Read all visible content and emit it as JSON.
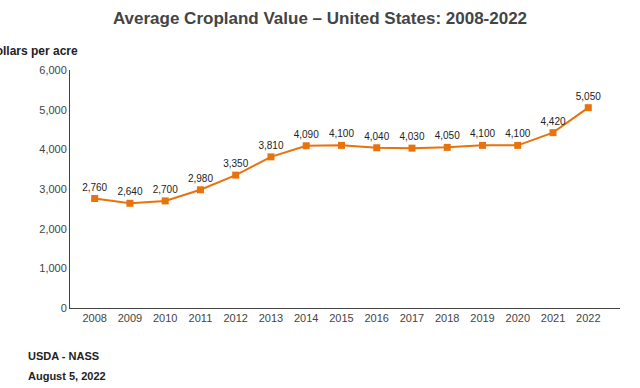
{
  "chart_data": {
    "type": "line",
    "title": "Average Cropland Value – United States: 2008-2022",
    "ylabel": "Dollars per acre",
    "x": [
      2008,
      2009,
      2010,
      2011,
      2012,
      2013,
      2014,
      2015,
      2016,
      2017,
      2018,
      2019,
      2020,
      2021,
      2022
    ],
    "values": [
      2760,
      2640,
      2700,
      2980,
      3350,
      3810,
      4090,
      4100,
      4040,
      4030,
      4050,
      4100,
      4100,
      4420,
      5050
    ],
    "value_labels": [
      "2,760",
      "2,640",
      "2,700",
      "2,980",
      "3,350",
      "3,810",
      "4,090",
      "4,100",
      "4,040",
      "4,030",
      "4,050",
      "4,100",
      "4,100",
      "4,420",
      "5,050"
    ],
    "data_labels": true,
    "color": "#E8720C",
    "marker": "square",
    "line_style": "solid",
    "xlim": [
      2007.3,
      2022.9
    ],
    "xticks": [
      2008,
      2009,
      2010,
      2011,
      2012,
      2013,
      2014,
      2015,
      2016,
      2017,
      2018,
      2019,
      2020,
      2021,
      2022
    ],
    "ylim": [
      0,
      6000
    ],
    "yticks": [
      0,
      {
        "value": 1000,
        "label": "1,000"
      },
      {
        "value": 2000,
        "label": "2,000"
      },
      {
        "value": 3000,
        "label": "3,000"
      },
      {
        "value": 4000,
        "label": "4,000"
      },
      {
        "value": 5000,
        "label": "5,000"
      },
      {
        "value": 6000,
        "label": "6,000"
      }
    ],
    "grid": false,
    "annotations": [
      "USDA - NASS",
      "August 5, 2022"
    ]
  }
}
